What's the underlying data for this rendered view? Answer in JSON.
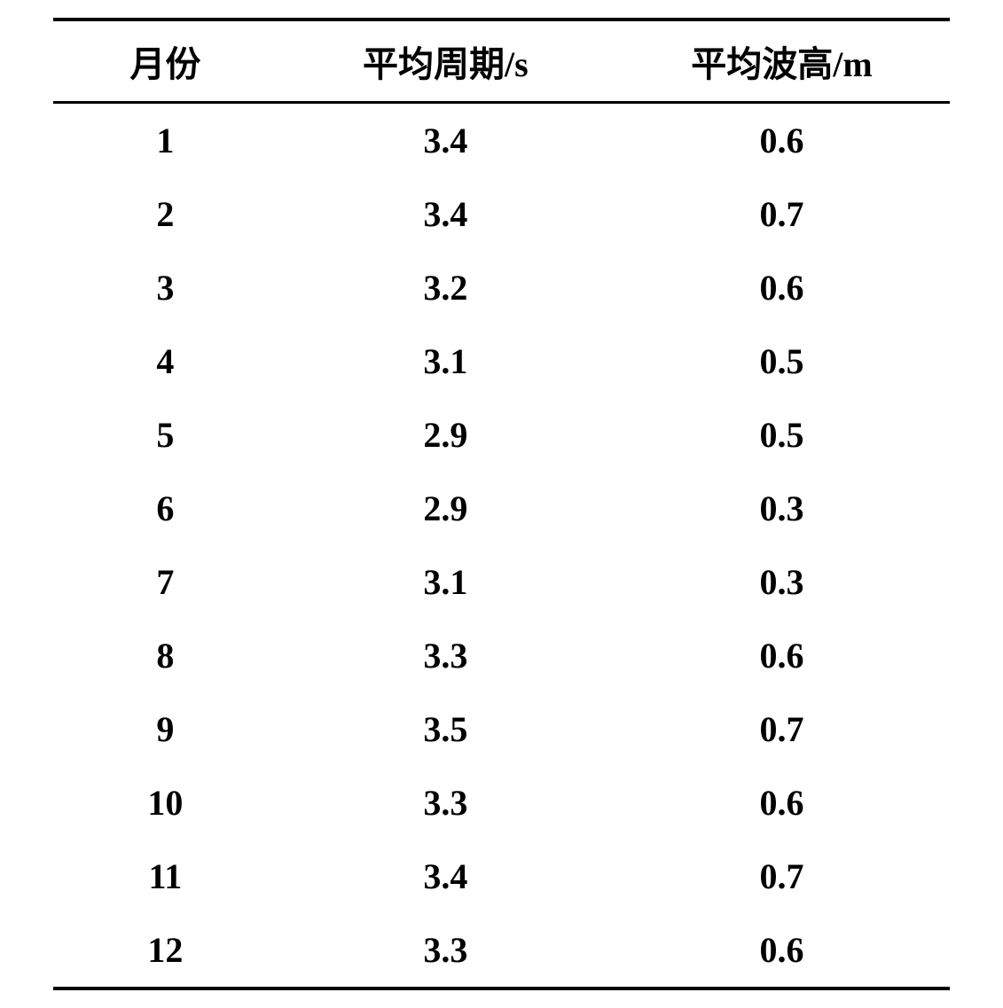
{
  "table": {
    "type": "table",
    "columns": [
      "月份",
      "平均周期/s",
      "平均波高/m"
    ],
    "rows": [
      [
        "1",
        "3.4",
        "0.6"
      ],
      [
        "2",
        "3.4",
        "0.7"
      ],
      [
        "3",
        "3.2",
        "0.6"
      ],
      [
        "4",
        "3.1",
        "0.5"
      ],
      [
        "5",
        "2.9",
        "0.5"
      ],
      [
        "6",
        "2.9",
        "0.3"
      ],
      [
        "7",
        "3.1",
        "0.3"
      ],
      [
        "8",
        "3.3",
        "0.6"
      ],
      [
        "9",
        "3.5",
        "0.7"
      ],
      [
        "10",
        "3.3",
        "0.6"
      ],
      [
        "11",
        "3.4",
        "0.7"
      ],
      [
        "12",
        "3.3",
        "0.6"
      ]
    ],
    "column_widths_percent": [
      25,
      37.5,
      37.5
    ],
    "header_fontsize": 40,
    "cell_fontsize": 40,
    "font_weight": "bold",
    "text_color": "#000000",
    "background_color": "#ffffff",
    "border_top_width": 4,
    "border_bottom_width": 4,
    "header_border_bottom_width": 3,
    "border_color": "#000000",
    "text_align": "center",
    "row_padding_vertical": 18,
    "header_padding_vertical": 16
  }
}
